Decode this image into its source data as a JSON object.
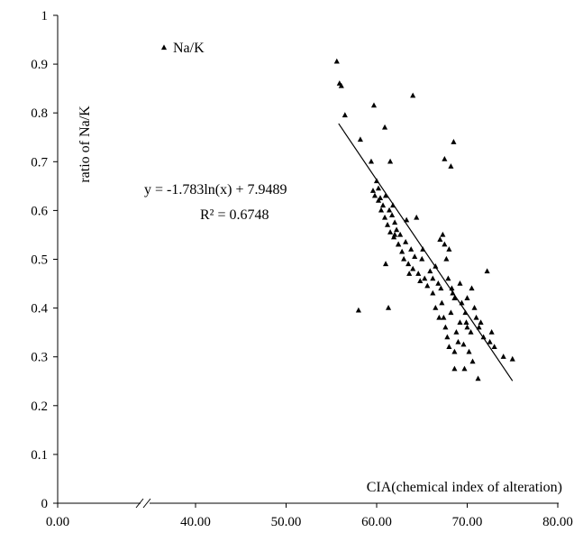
{
  "chart_data": {
    "type": "scatter",
    "x_axis": {
      "label": "CIA(chemical index of alteration)",
      "tick_labels": [
        "0.00",
        "40.00",
        "50.00",
        "60.00",
        "70.00",
        "80.00"
      ],
      "range": [
        30,
        80
      ],
      "axis_break": "between 0.00 and 40.00"
    },
    "y_axis": {
      "label": "ratio of Na/K",
      "tick_labels": [
        "0",
        "0.1",
        "0.2",
        "0.3",
        "0.4",
        "0.5",
        "0.6",
        "0.7",
        "0.8",
        "0.9",
        "1"
      ],
      "range": [
        0,
        1
      ]
    },
    "grid": false,
    "legend": {
      "entries": [
        "Na/K"
      ],
      "placement": "top-left"
    },
    "trendline": {
      "type": "logarithmic",
      "equation": "y = -1.783ln(x) + 7.9489",
      "r_squared": "R² = 0.6748",
      "a": -1.783,
      "b": 7.9489,
      "x_range": [
        55.8,
        75.0
      ]
    },
    "series": [
      {
        "name": "Na/K",
        "marker": "triangle",
        "color": "#000000",
        "points": [
          [
            55.6,
            0.905
          ],
          [
            55.9,
            0.86
          ],
          [
            56.1,
            0.855
          ],
          [
            56.5,
            0.795
          ],
          [
            58.2,
            0.745
          ],
          [
            59.7,
            0.815
          ],
          [
            60.9,
            0.77
          ],
          [
            61.5,
            0.7
          ],
          [
            64.0,
            0.835
          ],
          [
            67.5,
            0.705
          ],
          [
            68.2,
            0.69
          ],
          [
            68.5,
            0.74
          ],
          [
            59.4,
            0.7
          ],
          [
            59.6,
            0.64
          ],
          [
            59.8,
            0.63
          ],
          [
            60.0,
            0.66
          ],
          [
            60.2,
            0.645
          ],
          [
            60.4,
            0.625
          ],
          [
            60.5,
            0.6
          ],
          [
            60.7,
            0.61
          ],
          [
            60.9,
            0.585
          ],
          [
            61.0,
            0.63
          ],
          [
            61.2,
            0.57
          ],
          [
            61.4,
            0.6
          ],
          [
            61.5,
            0.555
          ],
          [
            61.7,
            0.59
          ],
          [
            61.9,
            0.545
          ],
          [
            62.0,
            0.575
          ],
          [
            62.2,
            0.56
          ],
          [
            62.4,
            0.53
          ],
          [
            62.6,
            0.55
          ],
          [
            62.8,
            0.515
          ],
          [
            63.0,
            0.5
          ],
          [
            63.2,
            0.535
          ],
          [
            63.5,
            0.49
          ],
          [
            63.8,
            0.52
          ],
          [
            64.0,
            0.48
          ],
          [
            64.2,
            0.505
          ],
          [
            64.4,
            0.585
          ],
          [
            64.6,
            0.47
          ],
          [
            64.8,
            0.455
          ],
          [
            65.0,
            0.5
          ],
          [
            65.3,
            0.46
          ],
          [
            65.6,
            0.445
          ],
          [
            65.9,
            0.475
          ],
          [
            66.2,
            0.43
          ],
          [
            66.5,
            0.485
          ],
          [
            66.8,
            0.45
          ],
          [
            67.0,
            0.54
          ],
          [
            67.3,
            0.55
          ],
          [
            67.5,
            0.53
          ],
          [
            67.7,
            0.5
          ],
          [
            67.9,
            0.46
          ],
          [
            68.0,
            0.52
          ],
          [
            67.2,
            0.41
          ],
          [
            67.4,
            0.38
          ],
          [
            67.6,
            0.36
          ],
          [
            67.8,
            0.34
          ],
          [
            68.0,
            0.32
          ],
          [
            68.2,
            0.39
          ],
          [
            68.4,
            0.43
          ],
          [
            68.6,
            0.31
          ],
          [
            68.8,
            0.35
          ],
          [
            69.0,
            0.33
          ],
          [
            69.2,
            0.37
          ],
          [
            69.4,
            0.41
          ],
          [
            69.6,
            0.325
          ],
          [
            69.8,
            0.39
          ],
          [
            70.0,
            0.36
          ],
          [
            70.2,
            0.31
          ],
          [
            70.4,
            0.35
          ],
          [
            70.6,
            0.29
          ],
          [
            70.8,
            0.4
          ],
          [
            71.0,
            0.38
          ],
          [
            71.5,
            0.37
          ],
          [
            71.8,
            0.34
          ],
          [
            72.2,
            0.475
          ],
          [
            72.5,
            0.33
          ],
          [
            73.0,
            0.32
          ],
          [
            74.0,
            0.3
          ],
          [
            75.0,
            0.295
          ],
          [
            71.2,
            0.255
          ],
          [
            68.6,
            0.275
          ],
          [
            69.7,
            0.275
          ],
          [
            68.3,
            0.44
          ],
          [
            69.2,
            0.45
          ],
          [
            70.0,
            0.42
          ],
          [
            70.5,
            0.44
          ],
          [
            66.5,
            0.4
          ],
          [
            66.9,
            0.38
          ],
          [
            61.3,
            0.4
          ],
          [
            58.0,
            0.395
          ],
          [
            61.0,
            0.49
          ],
          [
            62.4,
            0.53
          ],
          [
            63.3,
            0.58
          ],
          [
            62.0,
            0.55
          ],
          [
            60.2,
            0.62
          ],
          [
            61.8,
            0.61
          ],
          [
            63.6,
            0.47
          ],
          [
            65.1,
            0.52
          ],
          [
            66.2,
            0.46
          ],
          [
            67.1,
            0.44
          ],
          [
            68.6,
            0.42
          ],
          [
            69.9,
            0.37
          ],
          [
            71.3,
            0.36
          ],
          [
            72.7,
            0.35
          ]
        ]
      }
    ]
  }
}
